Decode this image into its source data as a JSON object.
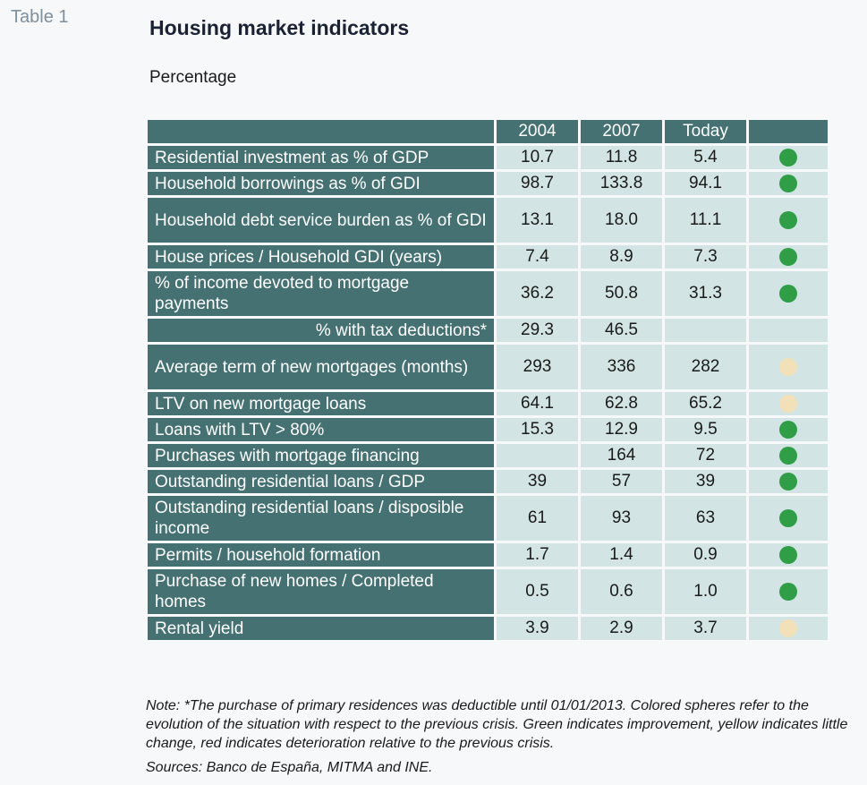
{
  "table_label": "Table 1",
  "title": "Housing market indicators",
  "subtitle": "Percentage",
  "columns": [
    "2004",
    "2007",
    "Today"
  ],
  "colors": {
    "green": "#2f9e47",
    "yellow": "#f1e0b8",
    "header": "#457173",
    "cell": "#d3e4e5"
  },
  "rows": [
    {
      "label": "Residential investment as % of GDP",
      "v2004": "10.7",
      "v2007": "11.8",
      "today": "5.4",
      "indicator": "green",
      "h": 26
    },
    {
      "label": "Household borrowings as % of GDI",
      "v2004": "98.7",
      "v2007": "133.8",
      "today": "94.1",
      "indicator": "green",
      "h": 26
    },
    {
      "label": "Household debt service burden as % of GDI",
      "v2004": "13.1",
      "v2007": "18.0",
      "today": "11.1",
      "indicator": "green",
      "h": 50
    },
    {
      "label": "House prices / Household GDI  (years)",
      "v2004": "7.4",
      "v2007": "8.9",
      "today": "7.3",
      "indicator": "green",
      "h": 26
    },
    {
      "label": "% of income devoted to mortgage payments",
      "v2004": "36.2",
      "v2007": "50.8",
      "today": "31.3",
      "indicator": "green",
      "h": 50
    },
    {
      "label": "% with tax deductions*",
      "v2004": "29.3",
      "v2007": "46.5",
      "today": "",
      "indicator": "",
      "h": 26,
      "align": "right"
    },
    {
      "label": "Average term of new mortgages (months)",
      "v2004": "293",
      "v2007": "336",
      "today": "282",
      "indicator": "yellow",
      "h": 50
    },
    {
      "label": "LTV on new mortgage loans",
      "v2004": "64.1",
      "v2007": "62.8",
      "today": "65.2",
      "indicator": "yellow",
      "h": 26
    },
    {
      "label": "Loans with LTV > 80%",
      "v2004": "15.3",
      "v2007": "12.9",
      "today": "9.5",
      "indicator": "green",
      "h": 26
    },
    {
      "label": "Purchases with mortgage financing",
      "v2004": "",
      "v2007": "164",
      "today": "72",
      "indicator": "green",
      "h": 26
    },
    {
      "label": "Outstanding residential loans / GDP",
      "v2004": "39",
      "v2007": "57",
      "today": "39",
      "indicator": "green",
      "h": 26
    },
    {
      "label": "Outstanding residential loans / disposible income",
      "v2004": "61",
      "v2007": "93",
      "today": "63",
      "indicator": "green",
      "h": 50
    },
    {
      "label": "Permits / household formation",
      "v2004": "1.7",
      "v2007": "1.4",
      "today": "0.9",
      "indicator": "green",
      "h": 26
    },
    {
      "label": "Purchase of new homes / Completed homes",
      "v2004": "0.5",
      "v2007": "0.6",
      "today": "1.0",
      "indicator": "green",
      "h": 50
    },
    {
      "label": "Rental yield",
      "v2004": "3.9",
      "v2007": "2.9",
      "today": "3.7",
      "indicator": "yellow",
      "h": 26
    }
  ],
  "note": "Note: *The purchase of primary residences was deductible until 01/01/2013. Colored spheres refer to the evolution of the situation with respect to the previous crisis. Green indicates improvement, yellow indicates little change, red indicates deterioration relative to the previous crisis.",
  "sources": "Sources: Banco de España, MITMA and INE."
}
